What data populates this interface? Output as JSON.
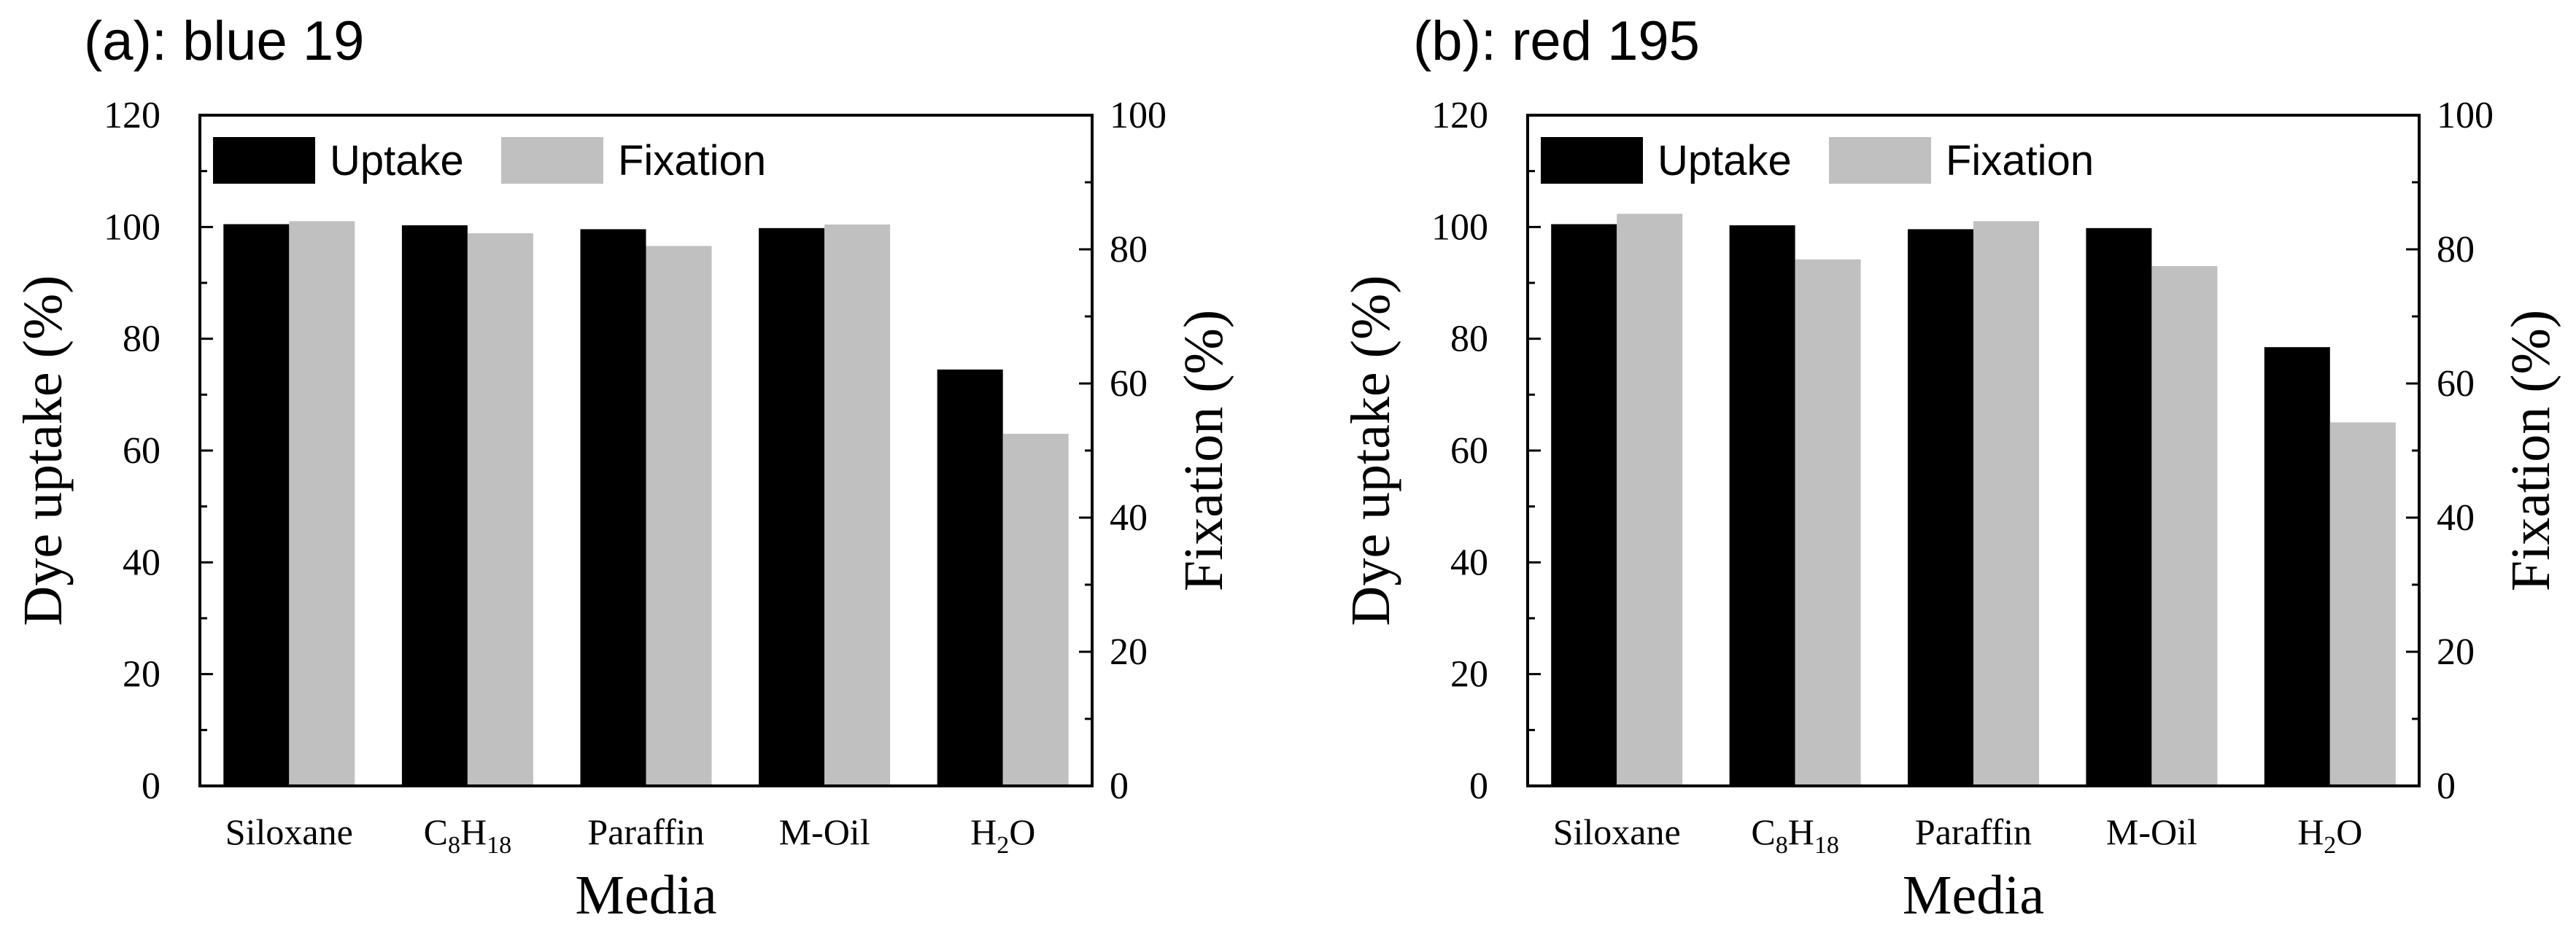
{
  "chart_data": [
    {
      "type": "bar",
      "title": "(a): blue 19",
      "xlabel": "Media",
      "ylabel": "Dye uptake (%)",
      "y2label": "Fixation (%)",
      "ylim": [
        0,
        120
      ],
      "y2lim": [
        0,
        100
      ],
      "yticks": [
        0,
        20,
        40,
        60,
        80,
        100,
        120
      ],
      "y2ticks": [
        0,
        20,
        40,
        60,
        80,
        100
      ],
      "legend_position": "top-left",
      "categories": [
        {
          "main": "Siloxane",
          "parts": [
            {
              "t": "Siloxane",
              "sub": false
            }
          ]
        },
        {
          "main": "C8H18",
          "parts": [
            {
              "t": "C",
              "sub": false
            },
            {
              "t": "8",
              "sub": true
            },
            {
              "t": "H",
              "sub": false
            },
            {
              "t": "18",
              "sub": true
            }
          ]
        },
        {
          "main": "Paraffin",
          "parts": [
            {
              "t": "Paraffin",
              "sub": false
            }
          ]
        },
        {
          "main": "M-Oil",
          "parts": [
            {
              "t": "M-Oil",
              "sub": false
            }
          ]
        },
        {
          "main": "H2O",
          "parts": [
            {
              "t": "H",
              "sub": false
            },
            {
              "t": "2",
              "sub": true
            },
            {
              "t": "O",
              "sub": false
            }
          ]
        }
      ],
      "series": [
        {
          "name": "Uptake",
          "axis": "left",
          "color": "#000000",
          "values": [
            100.5,
            100.3,
            99.6,
            99.8,
            74.5
          ]
        },
        {
          "name": "Fixation",
          "axis": "right",
          "color": "#c0c0c0",
          "values": [
            84.2,
            82.4,
            80.5,
            83.7,
            52.5
          ]
        }
      ]
    },
    {
      "type": "bar",
      "title": "(b): red 195",
      "xlabel": "Media",
      "ylabel": "Dye uptake (%)",
      "y2label": "Fixation (%)",
      "ylim": [
        0,
        120
      ],
      "y2lim": [
        0,
        100
      ],
      "yticks": [
        0,
        20,
        40,
        60,
        80,
        100,
        120
      ],
      "y2ticks": [
        0,
        20,
        40,
        60,
        80,
        100
      ],
      "legend_position": "top-left",
      "categories": [
        {
          "main": "Siloxane",
          "parts": [
            {
              "t": "Siloxane",
              "sub": false
            }
          ]
        },
        {
          "main": "C8H18",
          "parts": [
            {
              "t": "C",
              "sub": false
            },
            {
              "t": "8",
              "sub": true
            },
            {
              "t": "H",
              "sub": false
            },
            {
              "t": "18",
              "sub": true
            }
          ]
        },
        {
          "main": "Paraffin",
          "parts": [
            {
              "t": "Paraffin",
              "sub": false
            }
          ]
        },
        {
          "main": "M-Oil",
          "parts": [
            {
              "t": "M-Oil",
              "sub": false
            }
          ]
        },
        {
          "main": "H2O",
          "parts": [
            {
              "t": "H",
              "sub": false
            },
            {
              "t": "2",
              "sub": true
            },
            {
              "t": "O",
              "sub": false
            }
          ]
        }
      ],
      "series": [
        {
          "name": "Uptake",
          "axis": "left",
          "color": "#000000",
          "values": [
            100.5,
            100.3,
            99.6,
            99.8,
            78.5
          ]
        },
        {
          "name": "Fixation",
          "axis": "right",
          "color": "#c0c0c0",
          "values": [
            85.3,
            78.5,
            84.2,
            77.5,
            54.2
          ]
        }
      ]
    }
  ]
}
